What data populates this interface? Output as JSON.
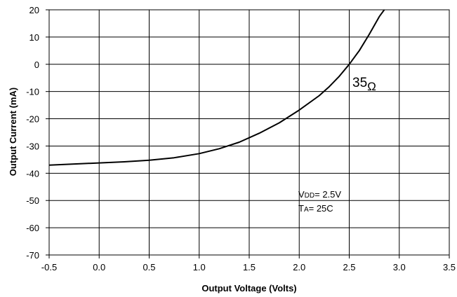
{
  "chart_data": {
    "type": "line",
    "title": "",
    "xlabel": "Output Voltage (Volts)",
    "ylabel": "Output Current (mA)",
    "xlim": [
      -0.5,
      3.5
    ],
    "ylim": [
      -70,
      20
    ],
    "xticks": [
      -0.5,
      0.0,
      0.5,
      1.0,
      1.5,
      2.0,
      2.5,
      3.0,
      3.5
    ],
    "xtick_labels": [
      "-0.5",
      "0.0",
      "0.5",
      "1.0",
      "1.5",
      "2.0",
      "2.5",
      "3.0",
      "3.5"
    ],
    "yticks": [
      20,
      10,
      0,
      -10,
      -20,
      -30,
      -40,
      -50,
      -60,
      -70
    ],
    "ytick_labels": [
      "20",
      "10",
      "0",
      "-10",
      "-20",
      "-30",
      "-40",
      "-50",
      "-60",
      "-70"
    ],
    "grid": true,
    "legend": "none",
    "series": [
      {
        "color": "#000000",
        "x": [
          -0.5,
          0.0,
          0.25,
          0.5,
          0.75,
          1.0,
          1.2,
          1.4,
          1.6,
          1.8,
          2.0,
          2.2,
          2.3,
          2.4,
          2.5,
          2.6,
          2.7,
          2.8,
          2.85
        ],
        "y": [
          -37.0,
          -36.2,
          -35.8,
          -35.2,
          -34.3,
          -32.8,
          -31.0,
          -28.6,
          -25.3,
          -21.5,
          -16.8,
          -11.5,
          -8.2,
          -4.4,
          0.0,
          5.0,
          11.0,
          17.5,
          20.0
        ]
      }
    ],
    "annotations": {
      "resistance": {
        "value": "35",
        "symbol": "Ω"
      },
      "vdd": {
        "prefix": "V",
        "subscript": "DD",
        "text": "= 2.5V"
      },
      "ta": {
        "prefix": "T",
        "subscript": "A",
        "text": "= 25C"
      }
    }
  }
}
